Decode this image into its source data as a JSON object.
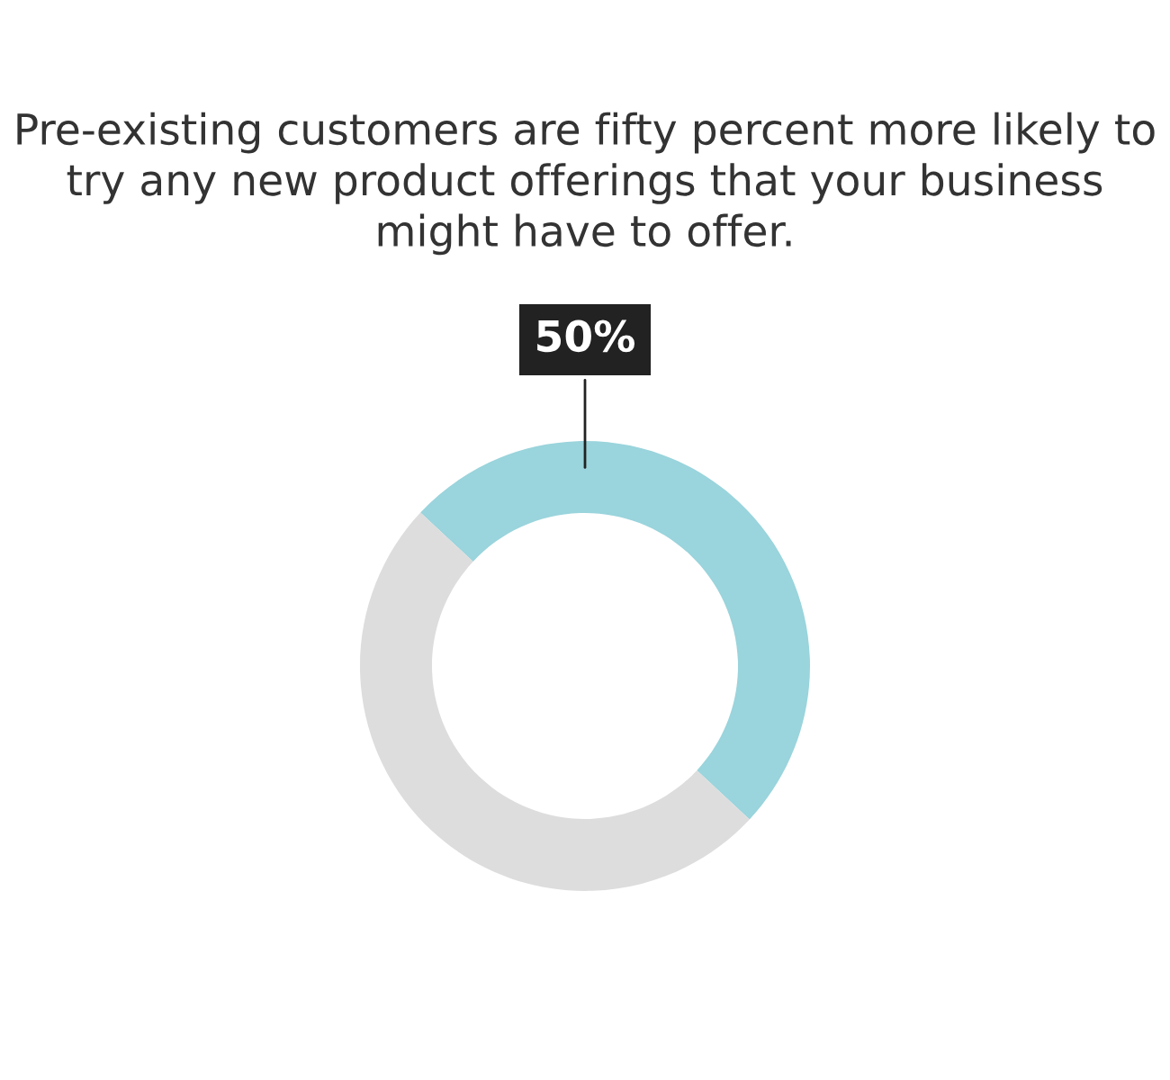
{
  "chart_data": {
    "type": "donut",
    "title": "Pre-existing customers are fifty percent more likely to try any new product offerings that your business might have to offer.",
    "categories": [
      null,
      null
    ],
    "values": [
      50,
      50
    ],
    "colors": [
      "#9ad4dc",
      "#dddddd"
    ],
    "value_labels": [
      "50%",
      null
    ],
    "legend": false
  }
}
